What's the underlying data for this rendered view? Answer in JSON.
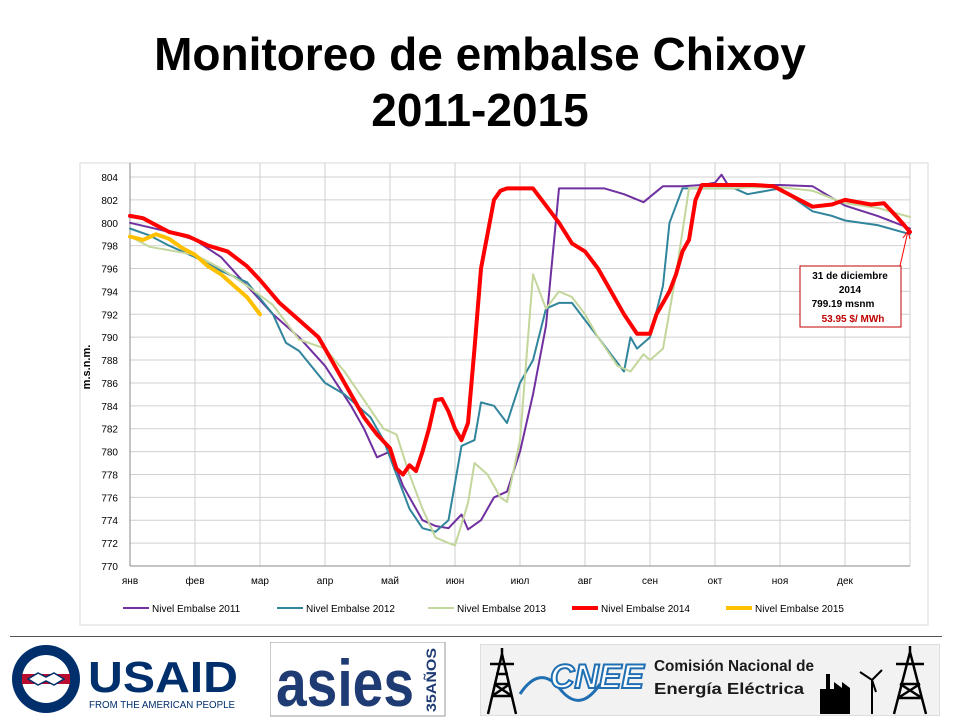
{
  "title_line1": "Monitoreo de embalse Chixoy",
  "title_line2": "2011-2015",
  "chart_data": {
    "type": "line",
    "ylabel": "m.s.n.m.",
    "xlabel": "",
    "ylim": [
      770,
      804
    ],
    "yticks": [
      770,
      772,
      774,
      776,
      778,
      780,
      782,
      784,
      786,
      788,
      790,
      792,
      794,
      796,
      798,
      800,
      802,
      804
    ],
    "xlim": [
      0,
      12
    ],
    "categories": [
      "янв",
      "фев",
      "мар",
      "апр",
      "май",
      "июн",
      "июл",
      "авг",
      "сен",
      "окт",
      "ноя",
      "дек"
    ],
    "grid": true,
    "legend_position": "bottom",
    "series": [
      {
        "name": "Nivel Embalse 2011",
        "color": "#7030A0",
        "width": 2,
        "x": [
          0,
          0.3,
          0.6,
          1,
          1.4,
          1.8,
          2.2,
          2.6,
          3,
          3.4,
          3.6,
          3.8,
          4,
          4.2,
          4.5,
          4.7,
          4.9,
          5.1,
          5.2,
          5.4,
          5.6,
          5.8,
          6,
          6.2,
          6.4,
          6.6,
          6.8,
          7,
          7.3,
          7.6,
          7.9,
          8.2,
          8.5,
          8.8,
          9,
          9.1,
          9.2,
          9.5,
          10,
          10.5,
          11,
          11.5,
          12
        ],
        "y": [
          800,
          799.6,
          799.2,
          798.5,
          797,
          794.5,
          792,
          790,
          787.5,
          784,
          782,
          779.5,
          780,
          777,
          774,
          773.5,
          773.3,
          774.5,
          773.2,
          774,
          776,
          776.5,
          780,
          785,
          791,
          803,
          803,
          803,
          803,
          802.5,
          801.8,
          803.2,
          803.2,
          803.3,
          803.5,
          804.2,
          803.3,
          803.3,
          803.3,
          803.2,
          801.5,
          800.6,
          799.5
        ]
      },
      {
        "name": "Nivel Embalse 2012",
        "color": "#31859C",
        "width": 2,
        "x": [
          0,
          0.3,
          0.6,
          1,
          1.4,
          1.8,
          2.2,
          2.4,
          2.6,
          3,
          3.3,
          3.5,
          3.7,
          3.9,
          4.1,
          4.3,
          4.5,
          4.7,
          4.9,
          5.1,
          5.3,
          5.4,
          5.6,
          5.8,
          6,
          6.2,
          6.4,
          6.6,
          6.8,
          7,
          7.2,
          7.4,
          7.6,
          7.7,
          7.8,
          8,
          8.2,
          8.3,
          8.5,
          8.7,
          9,
          9.3,
          9.5,
          10,
          10.5,
          10.8,
          11,
          11.5,
          12
        ],
        "y": [
          799.5,
          798.9,
          798,
          797,
          795.8,
          794.8,
          792,
          789.5,
          788.8,
          786,
          785,
          784,
          783,
          781,
          778,
          775,
          773.3,
          773,
          774,
          780.5,
          781,
          784.3,
          784,
          782.5,
          786,
          788,
          792.5,
          793,
          793,
          791.5,
          790,
          788.5,
          787,
          790,
          789,
          790,
          794.5,
          800,
          803,
          803,
          803,
          803,
          802.5,
          803,
          801,
          800.6,
          800.2,
          799.8,
          799
        ]
      },
      {
        "name": "Nivel Embalse 2013",
        "color": "#C3D69B",
        "width": 2,
        "x": [
          0,
          0.3,
          0.6,
          1,
          1.4,
          1.8,
          2.2,
          2.6,
          3,
          3.3,
          3.6,
          3.9,
          4.1,
          4.3,
          4.5,
          4.7,
          4.9,
          5,
          5.2,
          5.3,
          5.5,
          5.7,
          5.8,
          6,
          6.2,
          6.4,
          6.6,
          6.8,
          7,
          7.2,
          7.5,
          7.7,
          7.9,
          8,
          8.2,
          8.4,
          8.6,
          8.8,
          9,
          9.3,
          9.5,
          10,
          10.5,
          11,
          11.5,
          12
        ],
        "y": [
          798.8,
          797.9,
          797.6,
          797.2,
          796,
          794.5,
          792.8,
          789.8,
          789,
          787,
          784.5,
          782,
          781.5,
          778,
          775,
          772.5,
          772,
          771.8,
          775.5,
          779,
          778,
          776,
          775.6,
          781,
          795.5,
          792.5,
          794,
          793.5,
          792,
          790,
          787.5,
          787,
          788.5,
          788,
          789,
          795.5,
          803,
          803,
          803,
          803,
          803.1,
          803.1,
          802.8,
          801.7,
          801.3,
          800.5
        ]
      },
      {
        "name": "Nivel Embalse 2014",
        "color": "#FF0000",
        "width": 4,
        "x": [
          0,
          0.2,
          0.4,
          0.6,
          0.9,
          1.2,
          1.5,
          1.8,
          2,
          2.3,
          2.6,
          2.9,
          3.2,
          3.4,
          3.6,
          3.8,
          4,
          4.1,
          4.2,
          4.3,
          4.4,
          4.5,
          4.6,
          4.7,
          4.8,
          4.9,
          5,
          5.1,
          5.2,
          5.3,
          5.4,
          5.5,
          5.6,
          5.7,
          5.8,
          6,
          6.2,
          6.4,
          6.6,
          6.8,
          7,
          7.2,
          7.4,
          7.6,
          7.8,
          8,
          8.1,
          8.2,
          8.3,
          8.4,
          8.5,
          8.6,
          8.7,
          8.8,
          8.9,
          9,
          9.3,
          9.6,
          9.9,
          10.2,
          10.5,
          10.8,
          11,
          11.2,
          11.4,
          11.6,
          11.8,
          12
        ],
        "y": [
          800.6,
          800.4,
          799.8,
          799.2,
          798.8,
          798,
          797.5,
          796.2,
          795,
          793,
          791.5,
          790,
          787,
          785,
          783,
          781.5,
          780.3,
          778.5,
          778,
          778.8,
          778.3,
          780,
          782,
          784.5,
          784.6,
          783.5,
          782,
          781,
          782.5,
          789,
          796,
          799,
          802,
          802.8,
          803,
          803,
          803,
          801.5,
          800,
          798.2,
          797.5,
          796,
          794,
          792,
          790.3,
          790.3,
          792,
          793,
          794,
          795.5,
          797.5,
          798.5,
          802,
          803.3,
          803.3,
          803.3,
          803.3,
          803.3,
          803.2,
          802.3,
          801.4,
          801.6,
          802,
          801.8,
          801.6,
          801.7,
          800.5,
          799.2
        ]
      },
      {
        "name": "Nivel Embalse 2015",
        "color": "#FFC000",
        "width": 4,
        "x": [
          0,
          0.2,
          0.4,
          0.6,
          0.8,
          1,
          1.2,
          1.4,
          1.6,
          1.8,
          2
        ],
        "y": [
          798.8,
          798.5,
          799,
          798.6,
          797.8,
          797.2,
          796.2,
          795.5,
          794.5,
          793.5,
          792
        ]
      }
    ],
    "annotation": {
      "date_line1": "31 de diciembre",
      "date_line2": "2014",
      "level": "799.19 msnm",
      "price": "53.95 $/ MWh",
      "point": [
        12,
        799.19
      ]
    }
  },
  "logos": {
    "usaid": {
      "name": "USAID",
      "tagline": "FROM THE AMERICAN PEOPLE"
    },
    "asies": {
      "name": "asies",
      "years": "35AÑOS"
    },
    "cnee": {
      "acronym": "CNEE",
      "line1": "Comisión Nacional de",
      "line2": "Energía Eléctrica"
    }
  },
  "colors": {
    "usaid_blue": "#002F6C",
    "usaid_red": "#BA0C2F",
    "cnee_blue": "#1F6FB2",
    "cnee_green": "#7AB83A"
  }
}
